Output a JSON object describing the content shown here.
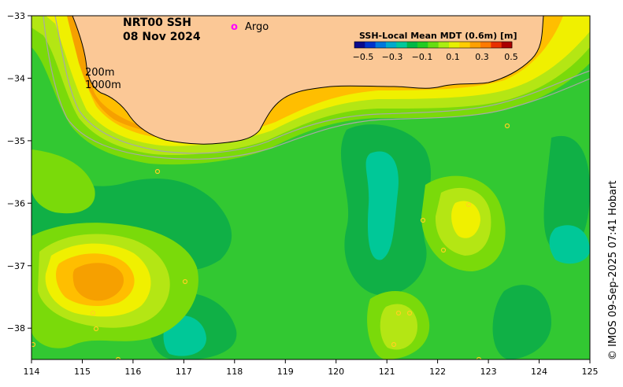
{
  "map": {
    "title_line1": "NRT00 SSH",
    "title_line2": "08 Nov 2024",
    "legend_argo_symbol": "o",
    "legend_argo_label": "Argo",
    "contour_label_200": "200m",
    "contour_label_1000": "1000m",
    "credit": "© IMOS 09-Sep-2025 07:41 Hobart",
    "x_ticks": [
      "114",
      "115",
      "116",
      "117",
      "118",
      "119",
      "120",
      "121",
      "122",
      "123",
      "124",
      "125"
    ],
    "y_ticks": [
      "−33",
      "−34",
      "−35",
      "−36",
      "−37",
      "−38"
    ],
    "colorbar": {
      "title": "SSH-Local Mean MDT (0.6m) [m]",
      "tick_labels": [
        "−0.5",
        "−0.3",
        "−0.1",
        "0.1",
        "0.3",
        "0.5"
      ],
      "colors": [
        "#0a0a8c",
        "#0033cc",
        "#0077dd",
        "#00aacc",
        "#00c89a",
        "#00b846",
        "#22cc22",
        "#66dd11",
        "#aaee11",
        "#e6f000",
        "#ffcc00",
        "#ffa000",
        "#ff7a00",
        "#e83000",
        "#aa0000"
      ]
    },
    "palette": {
      "land": "#fbc896",
      "strong_orange": "#f6a000",
      "orange": "#ffbe00",
      "yellow": "#f0f000",
      "yellow_green": "#b4e614",
      "light_green": "#7ada0a",
      "green": "#32c832",
      "dark_green": "#10b046",
      "teal": "#00c898",
      "argo": "#ff00ff",
      "isobath": "#a8a8a8",
      "coast": "#000000"
    }
  }
}
